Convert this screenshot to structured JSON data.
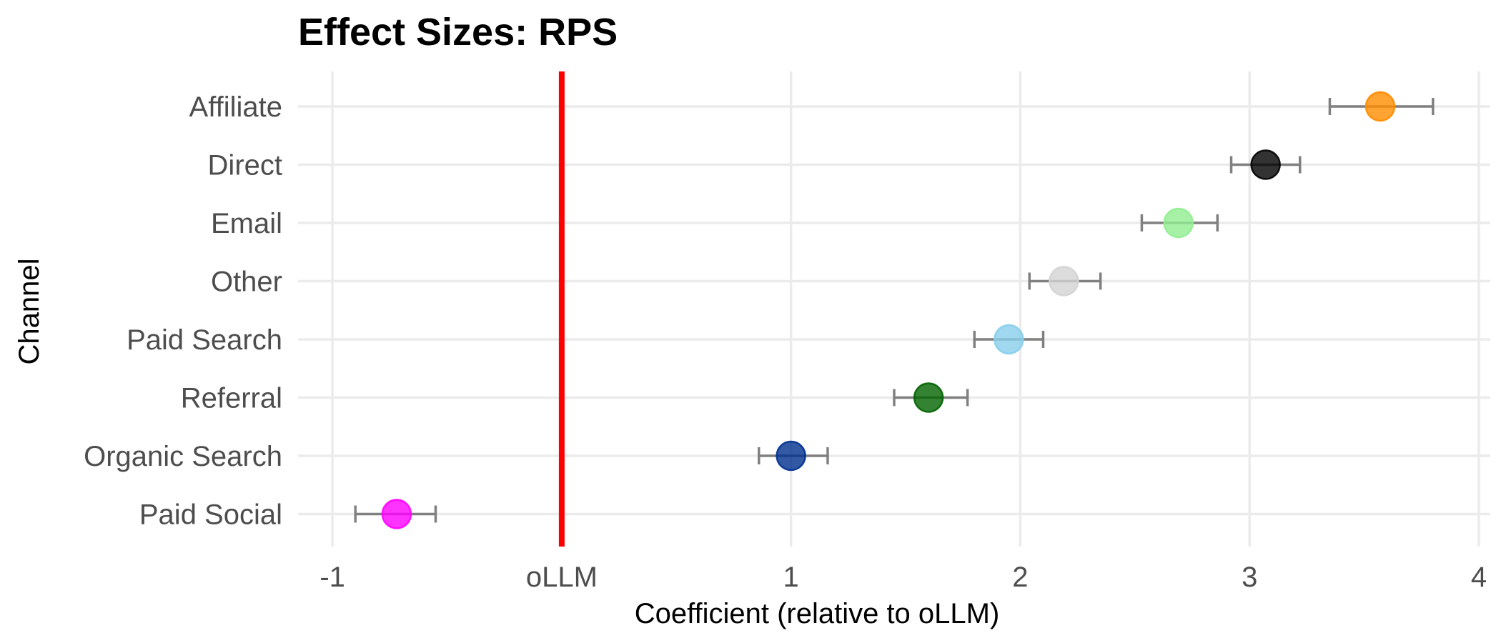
{
  "chart_data": {
    "type": "scatter",
    "title": "Effect Sizes: RPS",
    "xlabel": "Coefficient (relative to oLLM)",
    "ylabel": "Channel",
    "xlim": [
      -1.15,
      4.05
    ],
    "x_ticks": [
      {
        "value": -1,
        "label": "-1"
      },
      {
        "value": 0,
        "label": "oLLM"
      },
      {
        "value": 1,
        "label": "1"
      },
      {
        "value": 2,
        "label": "2"
      },
      {
        "value": 3,
        "label": "3"
      },
      {
        "value": 4,
        "label": "4"
      }
    ],
    "reference_line": {
      "x": 0,
      "color": "#ff0000"
    },
    "grid": true,
    "legend": "none",
    "series": [
      {
        "category": "Affiliate",
        "value": 3.57,
        "ci_low": 3.35,
        "ci_high": 3.8,
        "color": "#ff8c00"
      },
      {
        "category": "Direct",
        "value": 3.07,
        "ci_low": 2.92,
        "ci_high": 3.22,
        "color": "#000000"
      },
      {
        "category": "Email",
        "value": 2.69,
        "ci_low": 2.53,
        "ci_high": 2.86,
        "color": "#90ee90"
      },
      {
        "category": "Other",
        "value": 2.19,
        "ci_low": 2.04,
        "ci_high": 2.35,
        "color": "#d3d3d3"
      },
      {
        "category": "Paid Search",
        "value": 1.95,
        "ci_low": 1.8,
        "ci_high": 2.1,
        "color": "#87ceeb"
      },
      {
        "category": "Referral",
        "value": 1.6,
        "ci_low": 1.45,
        "ci_high": 1.77,
        "color": "#006400"
      },
      {
        "category": "Organic Search",
        "value": 1.0,
        "ci_low": 0.86,
        "ci_high": 1.16,
        "color": "#00308f"
      },
      {
        "category": "Paid Social",
        "value": -0.72,
        "ci_low": -0.9,
        "ci_high": -0.55,
        "color": "#ff00ff"
      }
    ]
  }
}
